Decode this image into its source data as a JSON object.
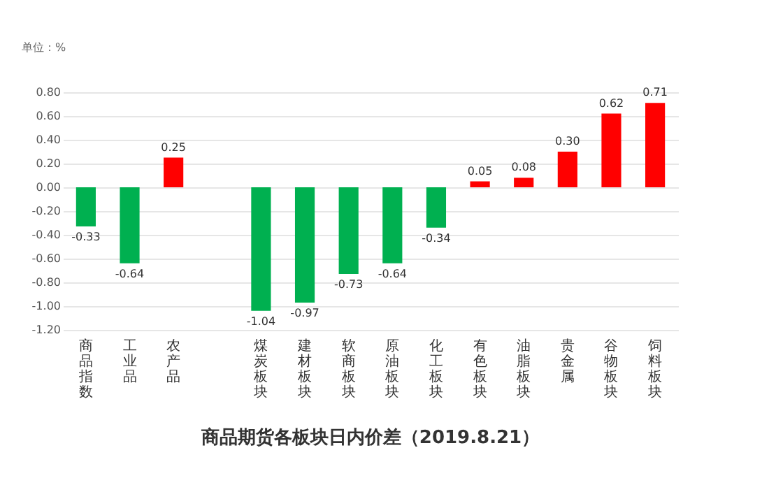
{
  "chart_data": {
    "type": "bar",
    "title": "商品期货各板块日内价差（2019.8.21）",
    "ylabel": "单位：%",
    "categories": [
      "商品指数",
      "工业品",
      "农产品",
      null,
      "煤炭板块",
      "建材板块",
      "软商板块",
      "原油板块",
      "化工板块",
      "有色板块",
      "油脂板块",
      "贵金属",
      "谷物板块",
      "饲料板块"
    ],
    "values": [
      -0.33,
      -0.64,
      0.25,
      null,
      -1.04,
      -0.97,
      -0.73,
      -0.64,
      -0.34,
      0.05,
      0.08,
      0.3,
      0.62,
      0.71
    ],
    "colors": [
      "#00b050",
      "#00b050",
      "#ff0000",
      null,
      "#00b050",
      "#00b050",
      "#00b050",
      "#00b050",
      "#00b050",
      "#ff0000",
      "#ff0000",
      "#ff0000",
      "#ff0000",
      "#ff0000"
    ],
    "ylim": [
      -1.2,
      0.8
    ],
    "yticks": [
      {
        "value": -1.2,
        "label": "-1.20"
      },
      {
        "value": -1.0,
        "label": "-1.00"
      },
      {
        "value": -0.8,
        "label": "-0.80"
      },
      {
        "value": -0.6,
        "label": "-0.60"
      },
      {
        "value": -0.4,
        "label": "-0.40"
      },
      {
        "value": -0.2,
        "label": "-0.20"
      },
      {
        "value": 0,
        "label": "0.00"
      },
      {
        "value": 0.2,
        "label": "0.20"
      },
      {
        "value": 0.4,
        "label": "0.40"
      },
      {
        "value": 0.6,
        "label": "0.60"
      },
      {
        "value": 0.8,
        "label": "0.80"
      }
    ],
    "value_labels": [
      "-0.33",
      "-0.64",
      "0.25",
      null,
      "-1.04",
      "-0.97",
      "-0.73",
      "-0.64",
      "-0.34",
      "0.05",
      "0.08",
      "0.30",
      "0.62",
      "0.71"
    ],
    "grid": "y"
  }
}
